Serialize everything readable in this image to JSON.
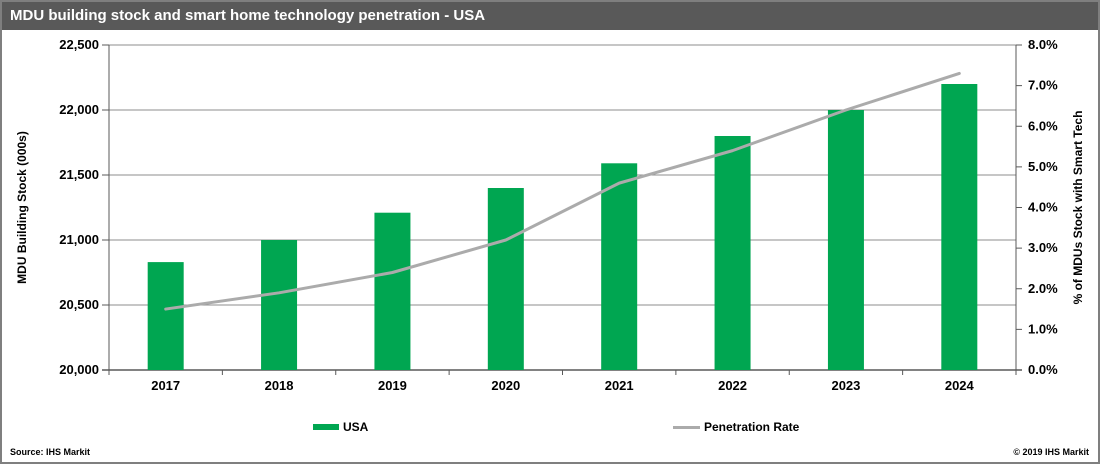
{
  "title": "MDU building stock and smart home technology penetration - USA",
  "footer": {
    "source": "Source: IHS Markit",
    "copyright": "© 2019 IHS Markit"
  },
  "legend": [
    {
      "label": "USA",
      "type": "bar"
    },
    {
      "label": "Penetration Rate",
      "type": "line"
    }
  ],
  "colors": {
    "bar": "#00A651",
    "line": "#ABABAB",
    "titlebar_bg": "#595959",
    "grid": "#8C8C8C",
    "axis": "#595959",
    "text": "#000000"
  },
  "chart_data": {
    "type": "bar",
    "subtype": "bar-line-combo",
    "title": "MDU building stock and smart home technology penetration - USA",
    "categories": [
      "2017",
      "2018",
      "2019",
      "2020",
      "2021",
      "2022",
      "2023",
      "2024"
    ],
    "series": [
      {
        "name": "USA",
        "type": "bar",
        "axis": "left",
        "values": [
          20830,
          21000,
          21210,
          21400,
          21590,
          21800,
          22000,
          22200
        ]
      },
      {
        "name": "Penetration Rate",
        "type": "line",
        "axis": "right",
        "values": [
          1.5,
          1.9,
          2.4,
          3.2,
          4.6,
          5.4,
          6.4,
          7.3
        ]
      }
    ],
    "left_axis": {
      "label": "MDU Building Stock (000s)",
      "min": 20000,
      "max": 22500,
      "step": 500
    },
    "right_axis": {
      "label": "% of MDUs Stock with Smart Tech",
      "min": 0,
      "max": 8,
      "step": 1
    },
    "grid": true,
    "legend_position": "bottom"
  }
}
